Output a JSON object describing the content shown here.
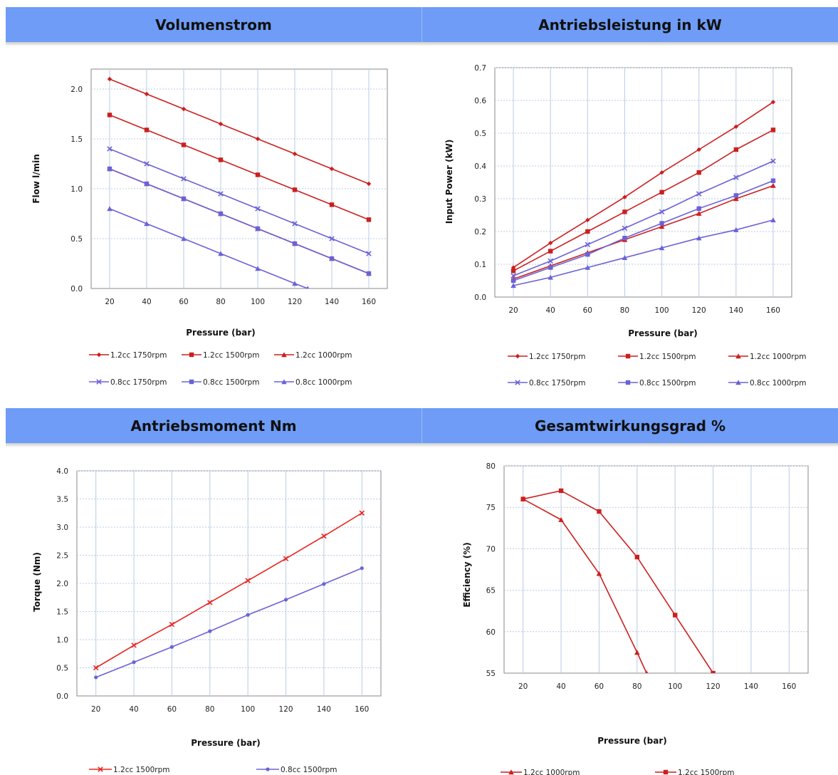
{
  "headers": {
    "row1": [
      "Volumenstrom",
      "Antriebsleistung in kW"
    ],
    "row2": [
      "Antriebsmoment Nm",
      "Gesamtwirkungsgrad %"
    ]
  },
  "colors": {
    "header_bg": "#6e9cf6",
    "red": "#cc1f1f",
    "purple": "#6b62d6"
  },
  "chart_data": [
    {
      "id": "flow",
      "type": "line",
      "xlabel": "Pressure (bar)",
      "ylabel": "Flow l/min",
      "xlim": [
        10,
        170
      ],
      "ylim": [
        0,
        2.2
      ],
      "xticks": [
        20,
        40,
        60,
        80,
        100,
        120,
        140,
        160
      ],
      "xtick_labels": [
        "20",
        "40",
        "60",
        "80",
        "100",
        "120",
        "140",
        "160"
      ],
      "yticks": [
        0,
        0.5,
        1.0,
        1.5,
        2.0
      ],
      "ytick_labels": [
        "0.0",
        "0.5",
        "1.0",
        "1.5",
        "2.0"
      ],
      "grid": true,
      "legend": "bottom",
      "series": [
        {
          "name": "1.2cc 1750rpm",
          "color": "#cc1f1f",
          "marker": "diamond",
          "x": [
            20,
            40,
            60,
            80,
            100,
            120,
            140,
            160
          ],
          "values": [
            2.1,
            1.95,
            1.8,
            1.65,
            1.5,
            1.35,
            1.2,
            1.05
          ]
        },
        {
          "name": "1.2cc 1500rpm",
          "color": "#cc1f1f",
          "marker": "square",
          "x": [
            20,
            40,
            60,
            80,
            100,
            120,
            140,
            160
          ],
          "values": [
            1.74,
            1.59,
            1.44,
            1.29,
            1.14,
            0.99,
            0.84,
            0.69
          ]
        },
        {
          "name": "1.2cc 1000rpm",
          "color": "#cc1f1f",
          "marker": "triangle",
          "x": [
            20,
            40,
            60,
            80,
            100,
            120,
            140,
            160
          ],
          "values": [
            1.2,
            1.05,
            0.9,
            0.75,
            0.6,
            0.45,
            0.3,
            0.15
          ]
        },
        {
          "name": "0.8cc 1750rpm",
          "color": "#6b62d6",
          "marker": "cross",
          "x": [
            20,
            40,
            60,
            80,
            100,
            120,
            140,
            160
          ],
          "values": [
            1.4,
            1.25,
            1.1,
            0.95,
            0.8,
            0.65,
            0.5,
            0.35
          ]
        },
        {
          "name": "0.8cc 1500rpm",
          "color": "#6b62d6",
          "marker": "square",
          "x": [
            20,
            40,
            60,
            80,
            100,
            120,
            140,
            160
          ],
          "values": [
            1.2,
            1.05,
            0.9,
            0.75,
            0.6,
            0.45,
            0.3,
            0.15
          ]
        },
        {
          "name": "0.8cc 1000rpm",
          "color": "#6b62d6",
          "marker": "triangle",
          "x": [
            20,
            40,
            60,
            80,
            100,
            120,
            127
          ],
          "values": [
            0.8,
            0.65,
            0.5,
            0.35,
            0.2,
            0.05,
            0.0
          ]
        }
      ]
    },
    {
      "id": "power",
      "type": "line",
      "xlabel": "Pressure (bar)",
      "ylabel": "Input Power (kW)",
      "xlim": [
        10,
        170
      ],
      "ylim": [
        0,
        0.7
      ],
      "xticks": [
        20,
        40,
        60,
        80,
        100,
        120,
        140,
        160
      ],
      "xtick_labels": [
        "20",
        "40",
        "60",
        "80",
        "100",
        "120",
        "140",
        "160"
      ],
      "yticks": [
        0,
        0.1,
        0.2,
        0.3,
        0.4,
        0.5,
        0.6,
        0.7
      ],
      "ytick_labels": [
        "0.0",
        "0.1",
        "0.2",
        "0.3",
        "0.4",
        "0.5",
        "0.6",
        "0.7"
      ],
      "grid": true,
      "legend": "bottom",
      "series": [
        {
          "name": "1.2cc 1750rpm",
          "color": "#cc1f1f",
          "marker": "diamond",
          "x": [
            20,
            40,
            60,
            80,
            100,
            120,
            140,
            160
          ],
          "values": [
            0.09,
            0.165,
            0.235,
            0.305,
            0.38,
            0.45,
            0.52,
            0.595
          ]
        },
        {
          "name": "1.2cc 1500rpm",
          "color": "#cc1f1f",
          "marker": "square",
          "x": [
            20,
            40,
            60,
            80,
            100,
            120,
            140,
            160
          ],
          "values": [
            0.08,
            0.14,
            0.2,
            0.26,
            0.32,
            0.38,
            0.45,
            0.51
          ]
        },
        {
          "name": "1.2cc 1000rpm",
          "color": "#cc1f1f",
          "marker": "triangle",
          "x": [
            20,
            40,
            60,
            80,
            100,
            120,
            140,
            160
          ],
          "values": [
            0.055,
            0.095,
            0.135,
            0.175,
            0.215,
            0.255,
            0.3,
            0.34
          ]
        },
        {
          "name": "0.8cc 1750rpm",
          "color": "#6b62d6",
          "marker": "cross",
          "x": [
            20,
            40,
            60,
            80,
            100,
            120,
            140,
            160
          ],
          "values": [
            0.065,
            0.11,
            0.16,
            0.21,
            0.26,
            0.315,
            0.365,
            0.415
          ]
        },
        {
          "name": "0.8cc 1500rpm",
          "color": "#6b62d6",
          "marker": "square",
          "x": [
            20,
            40,
            60,
            80,
            100,
            120,
            140,
            160
          ],
          "values": [
            0.05,
            0.09,
            0.13,
            0.18,
            0.225,
            0.27,
            0.31,
            0.355
          ]
        },
        {
          "name": "0.8cc 1000rpm",
          "color": "#6b62d6",
          "marker": "triangle",
          "x": [
            20,
            40,
            60,
            80,
            100,
            120,
            140,
            160
          ],
          "values": [
            0.035,
            0.06,
            0.09,
            0.12,
            0.15,
            0.18,
            0.205,
            0.235
          ]
        }
      ]
    },
    {
      "id": "torque",
      "type": "line",
      "xlabel": "Pressure (bar)",
      "ylabel": "Torque (Nm)",
      "xlim": [
        10,
        170
      ],
      "ylim": [
        0,
        4.0
      ],
      "xticks": [
        20,
        40,
        60,
        80,
        100,
        120,
        140,
        160
      ],
      "xtick_labels": [
        "20",
        "40",
        "60",
        "80",
        "100",
        "120",
        "140",
        "160"
      ],
      "yticks": [
        0,
        0.5,
        1.0,
        1.5,
        2.0,
        2.5,
        3.0,
        3.5,
        4.0
      ],
      "ytick_labels": [
        "0.0",
        "0.5",
        "1.0",
        "1.5",
        "2.0",
        "2.5",
        "3.0",
        "3.5",
        "4.0"
      ],
      "grid": true,
      "legend": "bottom",
      "series": [
        {
          "name": "1.2cc 1500rpm",
          "color": "#e8241f",
          "marker": "cross",
          "x": [
            20,
            40,
            60,
            80,
            100,
            120,
            140,
            160
          ],
          "values": [
            0.5,
            0.9,
            1.27,
            1.66,
            2.05,
            2.44,
            2.84,
            3.25
          ]
        },
        {
          "name": "0.8cc 1500rpm",
          "color": "#6b62d6",
          "marker": "dot",
          "x": [
            20,
            40,
            60,
            80,
            100,
            120,
            140,
            160
          ],
          "values": [
            0.33,
            0.6,
            0.87,
            1.15,
            1.44,
            1.71,
            1.99,
            2.27
          ]
        }
      ]
    },
    {
      "id": "efficiency",
      "type": "line",
      "xlabel": "Pressure (bar)",
      "ylabel": "Efficiency (%)",
      "xlim": [
        10,
        170
      ],
      "ylim": [
        55,
        80
      ],
      "xticks": [
        20,
        40,
        60,
        80,
        100,
        120,
        140,
        160
      ],
      "xtick_labels": [
        "20",
        "40",
        "60",
        "80",
        "100",
        "120",
        "140",
        "160"
      ],
      "yticks": [
        55,
        60,
        65,
        70,
        75,
        80
      ],
      "ytick_labels": [
        "55",
        "60",
        "65",
        "70",
        "75",
        "80"
      ],
      "grid": true,
      "legend": "bottom",
      "series": [
        {
          "name": "1.2cc 1000rpm",
          "color": "#cc1f1f",
          "marker": "triangle",
          "x": [
            20,
            40,
            60,
            80,
            85
          ],
          "values": [
            76,
            73.5,
            67,
            57.5,
            55
          ]
        },
        {
          "name": "1.2cc 1500rpm",
          "color": "#cc1f1f",
          "marker": "square",
          "x": [
            20,
            40,
            60,
            80,
            100,
            120
          ],
          "values": [
            76,
            77,
            74.5,
            69,
            62,
            55
          ]
        }
      ]
    }
  ]
}
